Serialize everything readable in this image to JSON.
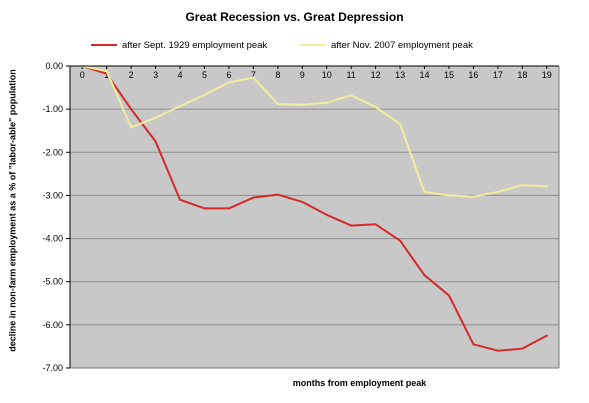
{
  "chart_data": {
    "type": "line",
    "title": "Great Recession vs. Great Depression",
    "xlabel": "months from employment peak",
    "ylabel": "decline in non-farm employment as a % of \"labor-able\" population",
    "x": [
      0,
      1,
      2,
      3,
      4,
      5,
      6,
      7,
      8,
      9,
      10,
      11,
      12,
      13,
      14,
      15,
      16,
      17,
      18,
      19
    ],
    "xticks": [
      "0",
      "1",
      "2",
      "3",
      "4",
      "5",
      "6",
      "7",
      "8",
      "9",
      "10",
      "11",
      "12",
      "13",
      "14",
      "15",
      "16",
      "17",
      "18",
      "19"
    ],
    "ylim": [
      -7,
      0
    ],
    "yticks": [
      "0.00",
      "-1.00",
      "-2.00",
      "-3.00",
      "-4.00",
      "-5.00",
      "-6.00",
      "-7.00"
    ],
    "grid": true,
    "legend_position": "top",
    "plot_background": "#c8c8c8",
    "series": [
      {
        "name": "after Sept. 1929 employment peak",
        "color": "#d42a2a",
        "values": [
          0,
          -0.18,
          -1.0,
          -1.75,
          -3.1,
          -3.3,
          -3.3,
          -3.05,
          -2.98,
          -3.15,
          -3.45,
          -3.7,
          -3.67,
          -4.05,
          -4.85,
          -5.32,
          -6.45,
          -6.6,
          -6.55,
          -6.25
        ]
      },
      {
        "name": "after Nov. 2007 employment peak",
        "color": "#f0ee9c",
        "values": [
          0,
          -0.12,
          -1.42,
          -1.2,
          -0.93,
          -0.67,
          -0.38,
          -0.27,
          -0.88,
          -0.9,
          -0.85,
          -0.68,
          -0.95,
          -1.35,
          -2.92,
          -3.0,
          -3.03,
          -2.92,
          -2.76,
          -2.79
        ]
      }
    ]
  }
}
